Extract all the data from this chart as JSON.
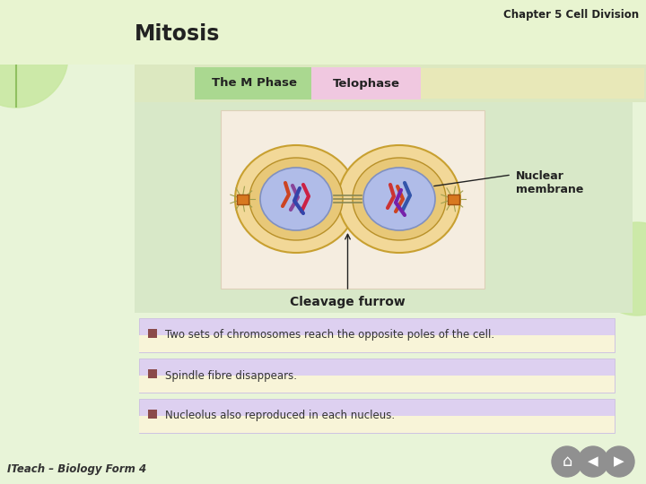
{
  "title_chapter": "Chapter 5 Cell Division",
  "title_main": "Mitosis",
  "tab1_text": "The M Phase",
  "tab2_text": "Telophase",
  "tab1_color": "#aad890",
  "tab2_color": "#f0c8e0",
  "tab_bar_color": "#d4e8b0",
  "bg_slide": "#e8f4d8",
  "bg_content": "#e0d0e8",
  "bg_image_panel": "#d8e8c8",
  "image_box_color": "#f0e8d8",
  "label_nuclear": "Nuclear\nmembrane",
  "label_cleavage": "Cleavage furrow",
  "bullet1": "Two sets of chromosomes reach the opposite poles of the cell.",
  "bullet2": "Spindle fibre disappears.",
  "bullet3": "Nucleolus also reproduced in each nucleus.",
  "bullet_color": "#8b4a4a",
  "bullet_box_top": "#ddd0f0",
  "bullet_box_bot": "#f8f4d8",
  "footer_text": "ITeach – Biology Form 4",
  "nav_color": "#909090",
  "left_circle_color": "#c8e8a0",
  "right_circle_color": "#c8e8a0"
}
